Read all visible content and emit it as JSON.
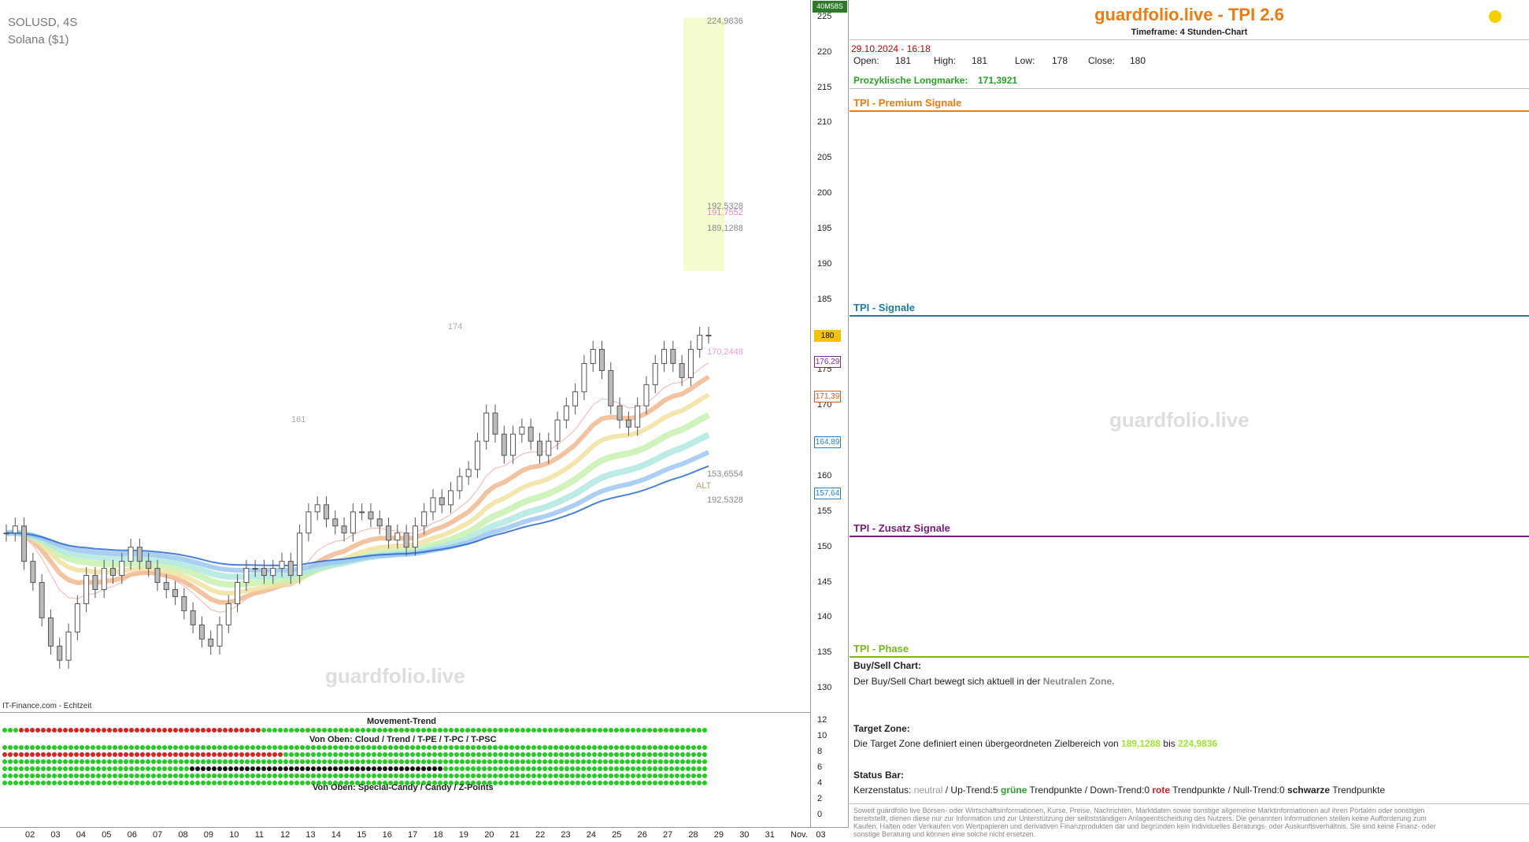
{
  "chart": {
    "symbol": "SOLUSD, 4S",
    "name": "Solana ($1)",
    "source": "IT-Finance.com - Echtzeit",
    "watermark": "guardfolio.live",
    "countdown": "40M58S",
    "price_ticks": [
      "225",
      "220",
      "215",
      "210",
      "205",
      "200",
      "195",
      "190",
      "185",
      "180",
      "175",
      "170",
      "165",
      "160",
      "155",
      "150",
      "145",
      "140",
      "135",
      "130"
    ],
    "price_badges": [
      {
        "value": "180",
        "color": "#f5c200"
      },
      {
        "value": "176,29",
        "color": "#7b2d8e"
      },
      {
        "value": "171,39",
        "color": "#e05a1a"
      },
      {
        "value": "164,89",
        "color": "#2a7fd1"
      },
      {
        "value": "157,64",
        "color": "#2a7fd1"
      }
    ],
    "target_labels": [
      "224,9836",
      "192,5328",
      "191,7552",
      "189,1288",
      "170,2448",
      "153,6554",
      "192,5328"
    ],
    "alt_label": "ALT",
    "extreme_labels": [
      "174",
      "161"
    ],
    "indicator_ticks": [
      "12",
      "10",
      "8",
      "6",
      "4",
      "2",
      "0"
    ],
    "indicator_titles": [
      "Movement-Trend",
      "Von Oben: Cloud / Trend / T-PE / T-PC / T-PSC",
      "Von Oben: Special-Candy / Candy / Z-Points"
    ],
    "time_labels": [
      "02",
      "03",
      "04",
      "05",
      "06",
      "07",
      "08",
      "09",
      "10",
      "11",
      "12",
      "13",
      "14",
      "15",
      "16",
      "17",
      "18",
      "19",
      "20",
      "21",
      "22",
      "23",
      "24",
      "25",
      "26",
      "27",
      "28",
      "29",
      "30",
      "31",
      "Nov.",
      "03"
    ]
  },
  "chart_data": {
    "type": "candlestick",
    "title": "SOLUSD, 4S",
    "ylim": [
      127,
      227
    ],
    "y_ticks": [
      225,
      220,
      215,
      210,
      205,
      200,
      195,
      190,
      185,
      180,
      175,
      170,
      165,
      160,
      155,
      150,
      145,
      140,
      135,
      130
    ],
    "closes": [
      152,
      153,
      148,
      145,
      140,
      136,
      134,
      138,
      142,
      146,
      144,
      147,
      146,
      148,
      150,
      148,
      147,
      145,
      144,
      143,
      141,
      139,
      137,
      136,
      139,
      142,
      145,
      147,
      147,
      146,
      147,
      148,
      146,
      152,
      155,
      156,
      154,
      153,
      152,
      155,
      155,
      154,
      153,
      151,
      152,
      150,
      153,
      155,
      157,
      156,
      158,
      160,
      161,
      165,
      169,
      166,
      163,
      166,
      167,
      165,
      163,
      165,
      168,
      170,
      172,
      176,
      178,
      175,
      170,
      168,
      167,
      170,
      173,
      176,
      178,
      176,
      174,
      178,
      180,
      180
    ],
    "current": {
      "open": 181,
      "high": 181,
      "low": 178,
      "close": 180
    },
    "target_zone": [
      189.1288,
      224.9836
    ],
    "moving_averages": [
      176.29,
      171.39,
      164.89,
      157.64
    ]
  },
  "panel": {
    "title": "guardfolio.live - TPI 2.6",
    "timeframe": "Timeframe: 4 Stunden-Chart",
    "datetime": "29.10.2024 - 16:18",
    "ohlc": [
      {
        "label": "Open:",
        "value": "181"
      },
      {
        "label": "High:",
        "value": "181"
      },
      {
        "label": "Low:",
        "value": "178"
      },
      {
        "label": "Close:",
        "value": "180"
      }
    ],
    "longmark_label": "Prozyklische Longmarke:",
    "longmark_value": "171,3921",
    "sections": [
      {
        "title": "TPI - Premium Signale",
        "color": "#f07a10"
      },
      {
        "title": "TPI - Signale",
        "color": "#1a7fa0"
      },
      {
        "title": "TPI - Zusatz Signale",
        "color": "#7a1a7a"
      },
      {
        "title": "TPI - Phase",
        "color": "#7ab818"
      }
    ],
    "watermark": "guardfolio.live",
    "buysell_title": "Buy/Sell Chart:",
    "buysell_text": "Der Buy/Sell Chart bewegt sich aktuell in der",
    "buysell_zone": "Neutralen Zone.",
    "target_title": "Target Zone:",
    "target_text": "Die Target Zone definiert einen übergeordneten Zielbereich von",
    "target_low": "189,1288",
    "target_mid": "bis",
    "target_high": "224,9836",
    "status_title": "Status Bar:",
    "status_a": "Kerzenstatus:",
    "status_neutral": "neutral",
    "status_b": "/ Up-Trend:5",
    "status_green": "grüne",
    "status_c": "Trendpunkte  / Down-Trend:0",
    "status_red": "rote",
    "status_d": "Trendpunkte / Null-Trend:0",
    "status_black": "schwarze",
    "status_e": "Trendpunkte",
    "disclaimer": "Soweit guardfolio live Börsen- oder Wirtschaftsinformationen, Kurse, Preise, Nachrichten, Marktdaten sowie sonstige allgemeine Marktinformationen auf ihren Portalen oder sonstigen bereitstellt, dienen diese nur zur Information und zur Unterstützung der selbstständigen Anlageentscheidung des Nutzers. Die genannten Informationen stellen keine Aufforderung zum Kaufen, Halten oder Verkaufen von Wertpapieren und derivativen Finanzprodukten dar und begründen kein individuelles Beratungs- oder Auskunftsverhältnis. Sie sind keine Finanz- oder sonstige Beratung und können eine solche nicht ersetzen.",
    "status_dot_color": "#f5d000"
  }
}
